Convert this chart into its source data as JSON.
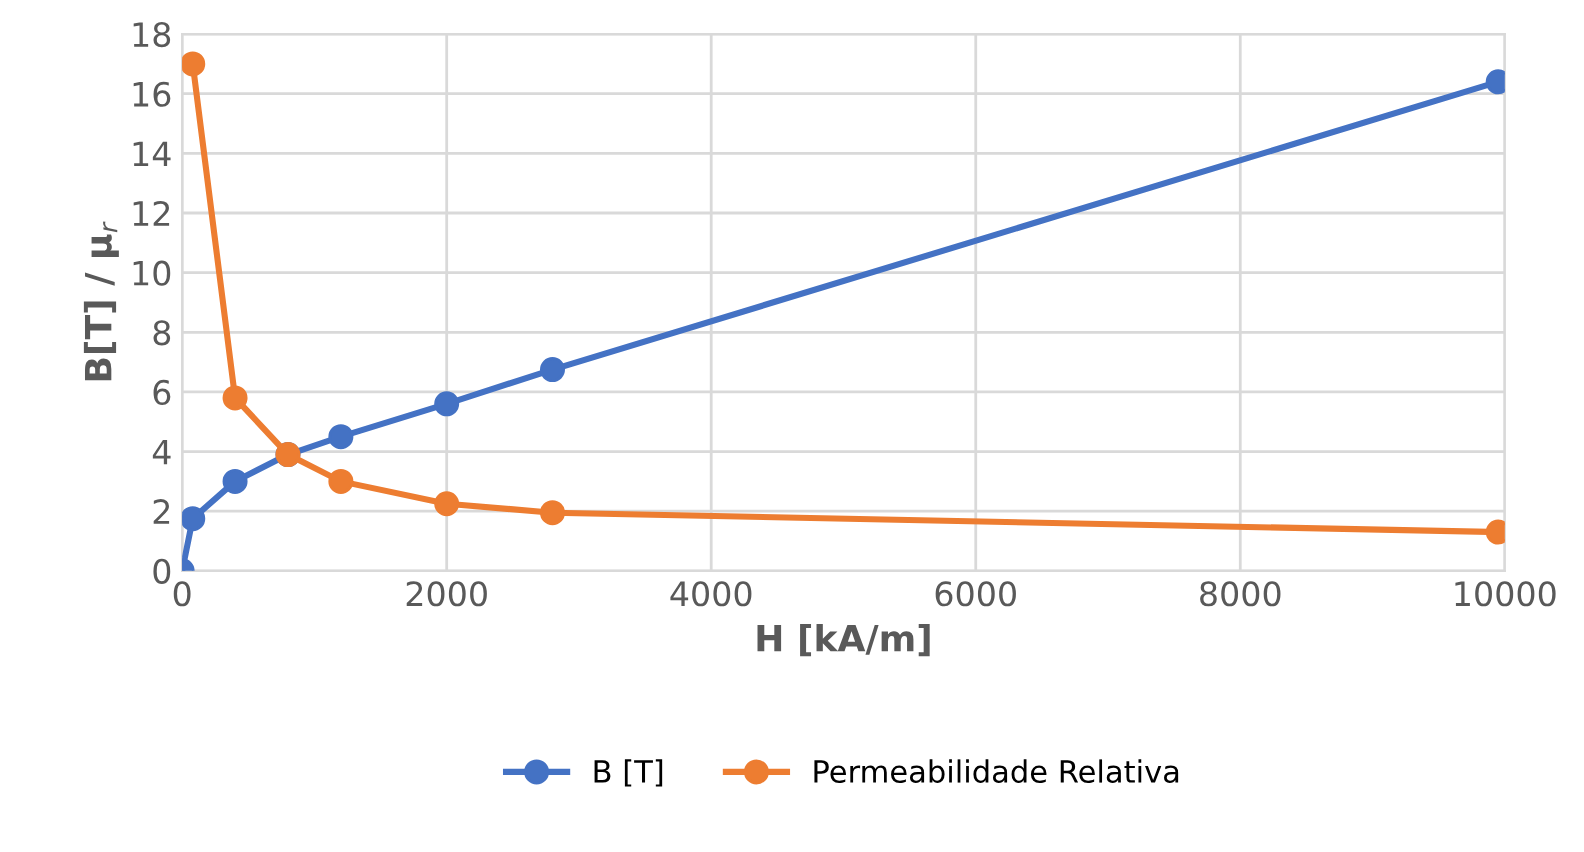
{
  "chart_data": {
    "type": "line",
    "xlabel": "H [kA/m]",
    "ylabel": "B[T] / μ$_{r}$",
    "xlim": [
      0,
      10000
    ],
    "xticks": [
      0,
      2000,
      4000,
      6000,
      8000,
      10000
    ],
    "ylim": [
      0,
      18
    ],
    "yticks": [
      0,
      2,
      4,
      6,
      8,
      10,
      12,
      14,
      16,
      18
    ],
    "grid": true,
    "legend": "bottom",
    "marker": "circle",
    "line_style": "solid",
    "series": [
      {
        "name": "B [T]",
        "color": "#4472c4",
        "x": [
          0,
          80,
          400,
          800,
          1200,
          2000,
          2800,
          9950
        ],
        "values": [
          0,
          1.75,
          3.0,
          3.9,
          4.5,
          5.6,
          6.75,
          16.4
        ]
      },
      {
        "name": "Permeabilidade Relativa",
        "color": "#ed7d31",
        "x": [
          80,
          400,
          800,
          1200,
          2000,
          2800,
          9950
        ],
        "values": [
          17.0,
          5.8,
          3.9,
          3.0,
          2.25,
          1.95,
          1.3
        ]
      }
    ]
  }
}
